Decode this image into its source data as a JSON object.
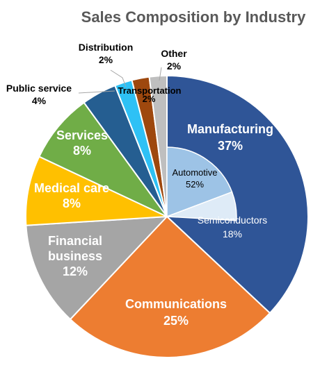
{
  "chart_data": {
    "type": "pie",
    "title": "Sales Composition by Industry",
    "slices": [
      {
        "label": "Manufacturing",
        "value": 37,
        "value_label": "37%",
        "color": "#2F5597"
      },
      {
        "label": "Communications",
        "value": 25,
        "value_label": "25%",
        "color": "#ED7D31"
      },
      {
        "label": "Financial business",
        "value": 12,
        "value_label": "12%",
        "color": "#A5A5A5"
      },
      {
        "label": "Medical care",
        "value": 8,
        "value_label": "8%",
        "color": "#FFC000"
      },
      {
        "label": "Services",
        "value": 8,
        "value_label": "8%",
        "color": "#70AD47"
      },
      {
        "label": "Public service",
        "value": 4,
        "value_label": "4%",
        "color": "#255E91"
      },
      {
        "label": "Distribution",
        "value": 2,
        "value_label": "2%",
        "color": "#2EC1F5"
      },
      {
        "label": "Transportation",
        "value": 2,
        "value_label": "2%",
        "color": "#9E480E"
      },
      {
        "label": "Other",
        "value": 2,
        "value_label": "2%",
        "color": "#BFBFBF"
      }
    ],
    "sub_breakdown": {
      "parent": "Manufacturing",
      "items": [
        {
          "label": "Automotive",
          "value": 52,
          "value_label": "52%",
          "color": "#9DC3E6"
        },
        {
          "label": "Semiconductors",
          "value": 18,
          "value_label": "18%",
          "color": "#DEEBF7"
        }
      ]
    }
  }
}
